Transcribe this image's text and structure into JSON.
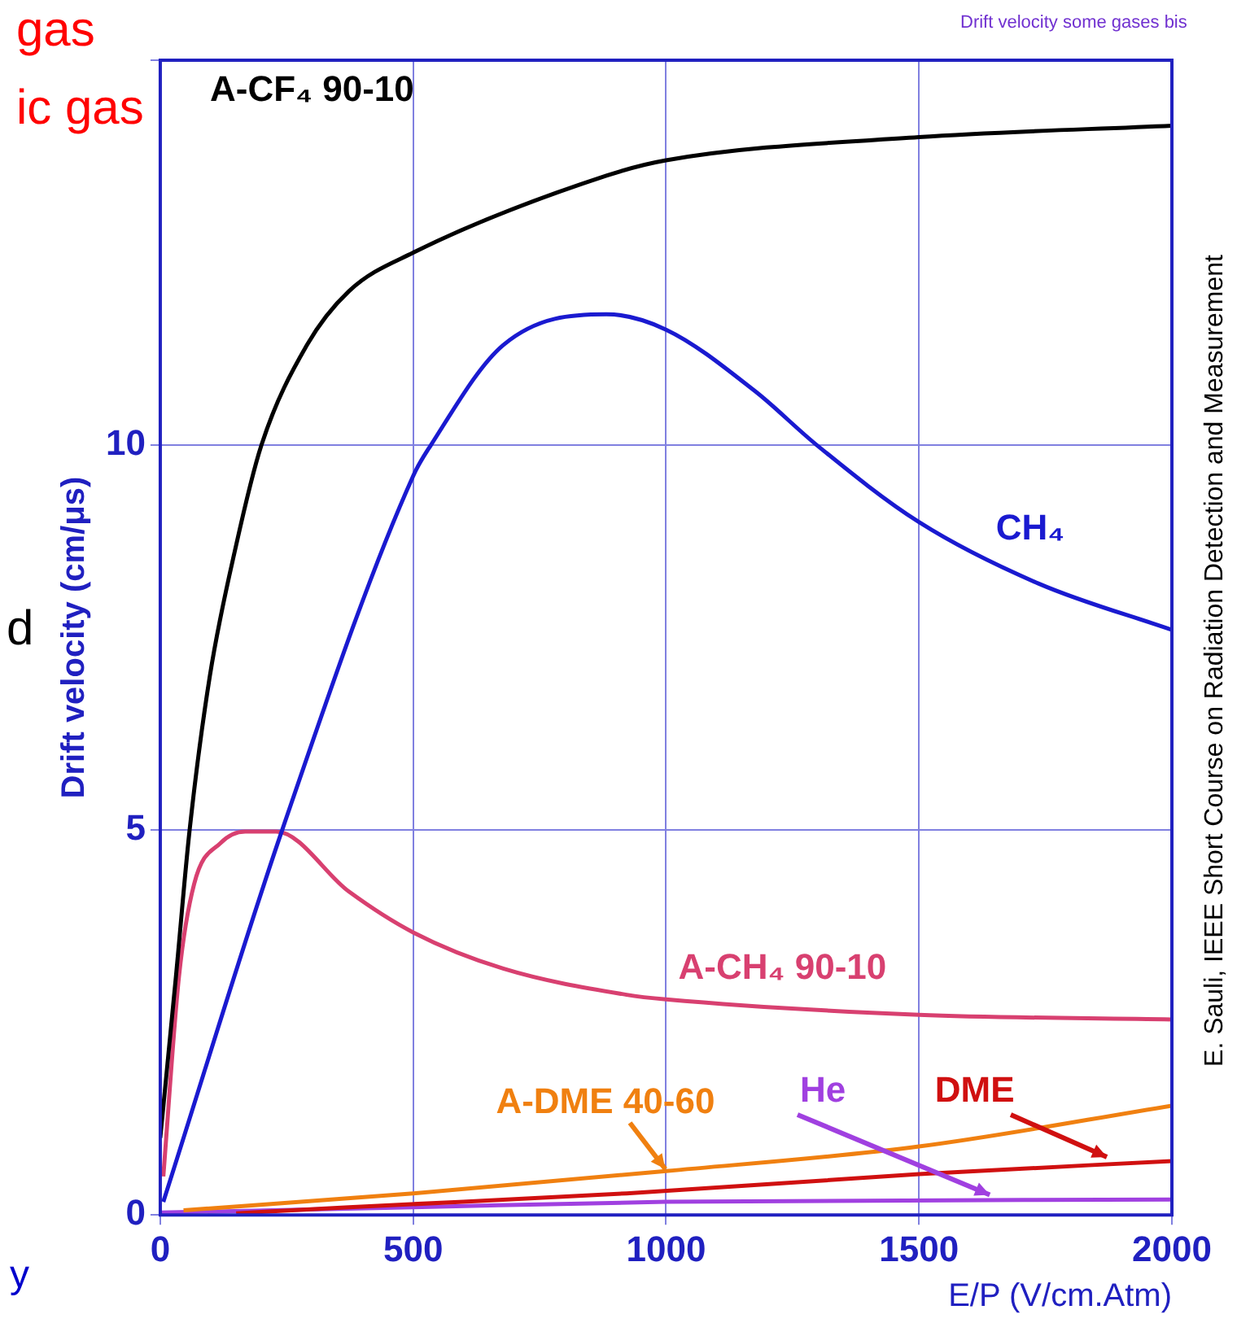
{
  "chart_data": {
    "type": "line",
    "xlabel": "E/P (V/cm.Atm)",
    "ylabel": "Drift velocity (cm/μs)",
    "xlim": [
      0,
      2000
    ],
    "xticks": [
      0,
      500,
      1000,
      1500,
      2000
    ],
    "ylim": [
      0,
      15
    ],
    "yticks": [
      0,
      5,
      10,
      {
        "value": 15,
        "label": null
      }
    ],
    "grid": true,
    "legend": false,
    "marker": "none",
    "line_style": "solid",
    "annotations": [
      "Drift velocity some gases bis",
      "gas",
      "ic gas",
      "d",
      "y",
      "E. Sauli, IEEE Short Course on Radiation Detection and Measurement"
    ],
    "series": [
      {
        "name": "A-CF₄ 90-10",
        "color": "#000000",
        "x": [
          0,
          31,
          58,
          98,
          150,
          200,
          290,
          373,
          500,
          882,
          1000,
          1500,
          2000
        ],
        "values": [
          1.0,
          3.1,
          5.0,
          7.0,
          8.7,
          10.0,
          11.3,
          12.0,
          12.5,
          13.5,
          13.7,
          14.0,
          14.15
        ]
      },
      {
        "name": "CH₄",
        "color": "#1a1ad0",
        "x": [
          6,
          241,
          500,
          535,
          678,
          882,
          1000,
          1176,
          1298,
          1500,
          1737,
          2000
        ],
        "values": [
          0.17,
          5.0,
          9.6,
          10.0,
          11.3,
          11.7,
          11.5,
          10.7,
          10.0,
          9.0,
          8.2,
          7.6
        ]
      },
      {
        "name": "A-CH₄ 90-10",
        "color": "#d84070",
        "x": [
          6,
          37,
          67,
          119,
          168,
          229,
          373,
          500,
          678,
          922,
          1000,
          1500,
          2000
        ],
        "values": [
          0.5,
          3.1,
          4.3,
          4.83,
          4.98,
          4.98,
          4.2,
          3.67,
          3.2,
          2.86,
          2.8,
          2.6,
          2.54
        ]
      },
      {
        "name": "A-DME 40-60",
        "color": "#f08010",
        "x": [
          46,
          500,
          1000,
          1500,
          2000
        ],
        "values": [
          0.06,
          0.28,
          0.57,
          0.89,
          1.42
        ]
      },
      {
        "name": "DME",
        "color": "#d01010",
        "x": [
          150,
          373,
          922,
          1500,
          2000
        ],
        "values": [
          0.02,
          0.1,
          0.28,
          0.53,
          0.7
        ]
      },
      {
        "name": "He",
        "color": "#a040e0",
        "x": [
          0,
          500,
          1000,
          2000
        ],
        "values": [
          0.03,
          0.1,
          0.17,
          0.2
        ]
      }
    ]
  }
}
